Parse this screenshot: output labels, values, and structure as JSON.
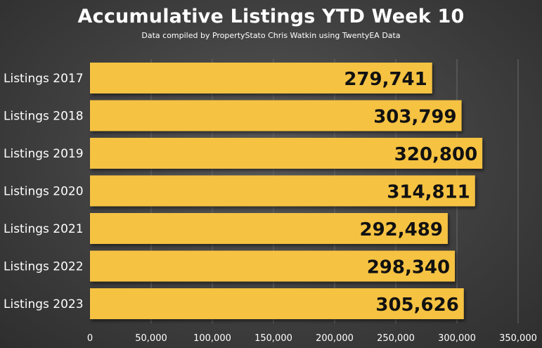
{
  "chart_data": {
    "type": "bar",
    "orientation": "horizontal",
    "title": "Accumulative Listings YTD Week 10",
    "subtitle": "Data compiled by PropertyStato Chris Watkin using TwentyEA Data",
    "categories": [
      "Listings 2017",
      "Listings 2018",
      "Listings 2019",
      "Listings 2020",
      "Listings 2021",
      "Listings 2022",
      "Listings 2023"
    ],
    "values": [
      279741,
      303799,
      320800,
      314811,
      292489,
      298340,
      305626
    ],
    "data_labels": [
      "279,741",
      "303,799",
      "320,800",
      "314,811",
      "292,489",
      "298,340",
      "305,626"
    ],
    "xlim": [
      0,
      350000
    ],
    "x_ticks": [
      0,
      50000,
      100000,
      150000,
      200000,
      250000,
      300000,
      350000
    ],
    "x_tick_labels": [
      "0",
      "50,000",
      "100,000",
      "150,000",
      "200,000",
      "250,000",
      "300,000",
      "350,000"
    ],
    "grid": true,
    "bar_color": "#F5C242",
    "background_color": "#404040"
  }
}
